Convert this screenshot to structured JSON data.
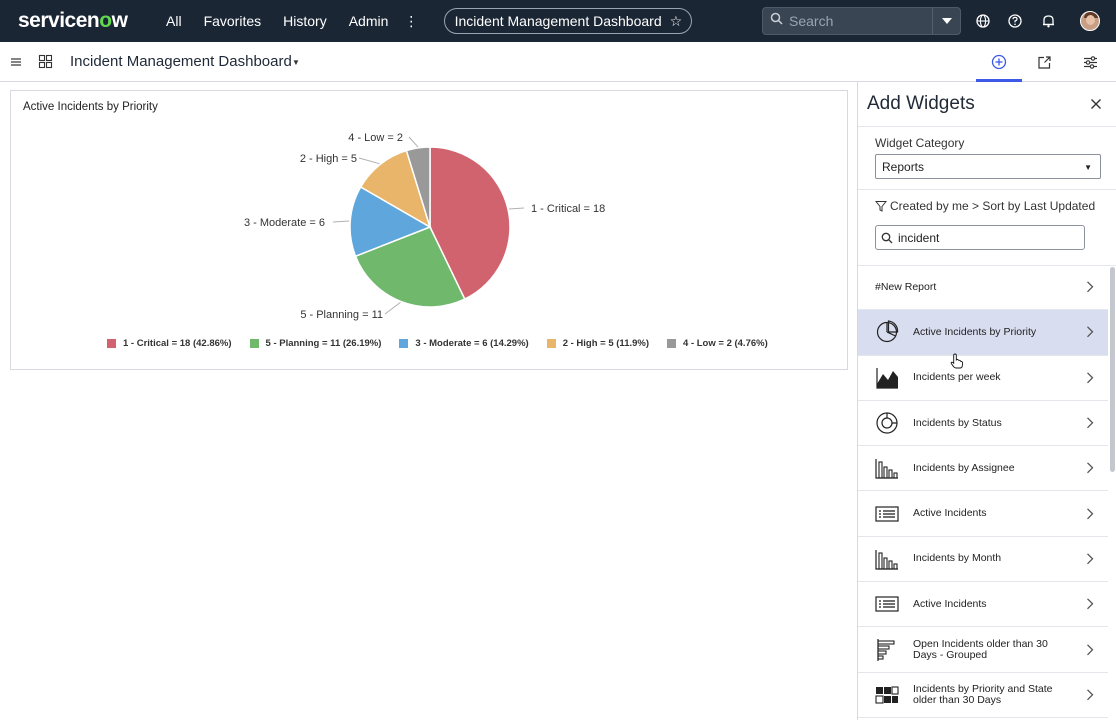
{
  "topnav": {
    "brand_prefix": "servicen",
    "brand_o": "o",
    "brand_suffix": "w",
    "items": [
      "All",
      "Favorites",
      "History",
      "Admin"
    ],
    "more": "⋮",
    "title_pill": "Incident Management Dashboard",
    "search_placeholder": "Search"
  },
  "subbar": {
    "dashboard_title": "Incident Management Dashboard"
  },
  "widget": {
    "title": "Active Incidents by Priority",
    "chart_data": {
      "type": "pie",
      "title": "Active Incidents by Priority",
      "slices": [
        {
          "label": "1 - Critical = 18",
          "value": 18,
          "legend": "1 - Critical = 18 (42.86%)",
          "color": "#d1636f"
        },
        {
          "label": "5 - Planning = 11",
          "value": 11,
          "legend": "5 - Planning = 11 (26.19%)",
          "color": "#6fb86c"
        },
        {
          "label": "3 - Moderate = 6",
          "value": 6,
          "legend": "3 - Moderate = 6 (14.29%)",
          "color": "#5fa6dc"
        },
        {
          "label": "2 - High = 5",
          "value": 5,
          "legend": "2 - High = 5 (11.9%)",
          "color": "#e8b56a"
        },
        {
          "label": "4 - Low = 2",
          "value": 2,
          "legend": "4 - Low = 2 (4.76%)",
          "color": "#999999"
        }
      ],
      "legend_position": "bottom"
    }
  },
  "panel": {
    "title": "Add Widgets",
    "category_label": "Widget Category",
    "category_value": "Reports",
    "filter_text": "Created by me > Sort by Last Updated",
    "search_value": "incident",
    "items": [
      {
        "label": "#New Report",
        "icon": "none"
      },
      {
        "label": "Active Incidents by Priority",
        "icon": "pie-chart-icon",
        "selected": true
      },
      {
        "label": "Incidents per week",
        "icon": "area-chart-icon"
      },
      {
        "label": "Incidents by Status",
        "icon": "donut-chart-icon"
      },
      {
        "label": "Incidents by Assignee",
        "icon": "bar-chart-icon"
      },
      {
        "label": "Active Incidents",
        "icon": "list-icon"
      },
      {
        "label": "Incidents by Month",
        "icon": "bar-chart-icon"
      },
      {
        "label": "Active Incidents",
        "icon": "list-icon"
      },
      {
        "label": "Open Incidents older than 30 Days - Grouped",
        "icon": "horizontal-bar-icon"
      },
      {
        "label": "Incidents by Priority and State older than 30 Days",
        "icon": "heatmap-icon"
      }
    ]
  }
}
